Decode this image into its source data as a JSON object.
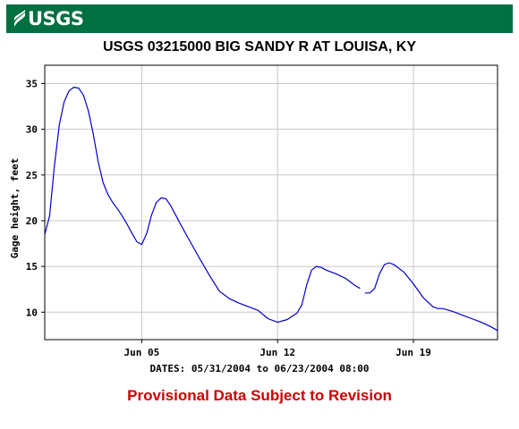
{
  "banner": {
    "logo_text": "USGS",
    "logo_icon": "usgs-wave-icon",
    "color": "#006f41"
  },
  "chart_data": {
    "type": "line",
    "title": "USGS 03215000 BIG SANDY R AT LOUISA, KY",
    "xlabel": "DATES: 05/31/2004 to 06/23/2004 08:00",
    "ylabel": "Gage height, feet",
    "x_ticks": [
      "Jun 05",
      "Jun 12",
      "Jun 19"
    ],
    "y_ticks": [
      "10",
      "15",
      "20",
      "25",
      "30",
      "35"
    ],
    "ylim": [
      7,
      37
    ],
    "xlim": [
      "05/31/2004 00:00",
      "06/23/2004 08:00"
    ],
    "grid": true,
    "line_color": "#0000cc",
    "series": [
      {
        "segments": [
          [
            [
              "05/31/2004 00:00",
              18.5
            ],
            [
              "05/31/2004 06:00",
              20.5
            ],
            [
              "05/31/2004 12:00",
              26.0
            ],
            [
              "05/31/2004 18:00",
              30.5
            ],
            [
              "06/01/2004 00:00",
              33.0
            ],
            [
              "06/01/2004 06:00",
              34.2
            ],
            [
              "06/01/2004 12:00",
              34.6
            ],
            [
              "06/01/2004 18:00",
              34.5
            ],
            [
              "06/02/2004 00:00",
              33.7
            ],
            [
              "06/02/2004 06:00",
              32.0
            ],
            [
              "06/02/2004 12:00",
              29.5
            ],
            [
              "06/02/2004 18:00",
              26.5
            ],
            [
              "06/03/2004 00:00",
              24.2
            ],
            [
              "06/03/2004 06:00",
              22.9
            ],
            [
              "06/03/2004 12:00",
              22.0
            ],
            [
              "06/03/2004 18:00",
              21.3
            ],
            [
              "06/04/2004 00:00",
              20.5
            ],
            [
              "06/04/2004 06:00",
              19.6
            ],
            [
              "06/04/2004 12:00",
              18.6
            ],
            [
              "06/04/2004 18:00",
              17.7
            ],
            [
              "06/05/2004 00:00",
              17.4
            ],
            [
              "06/05/2004 06:00",
              18.6
            ],
            [
              "06/05/2004 12:00",
              20.6
            ],
            [
              "06/05/2004 18:00",
              22.0
            ],
            [
              "06/06/2004 00:00",
              22.5
            ],
            [
              "06/06/2004 06:00",
              22.4
            ],
            [
              "06/06/2004 12:00",
              21.6
            ],
            [
              "06/06/2004 18:00",
              20.6
            ],
            [
              "06/07/2004 00:00",
              19.6
            ],
            [
              "06/07/2004 12:00",
              17.7
            ],
            [
              "06/08/2004 00:00",
              15.8
            ],
            [
              "06/08/2004 12:00",
              14.0
            ],
            [
              "06/09/2004 00:00",
              12.3
            ],
            [
              "06/09/2004 12:00",
              11.5
            ],
            [
              "06/10/2004 00:00",
              11.0
            ],
            [
              "06/10/2004 12:00",
              10.6
            ],
            [
              "06/11/2004 00:00",
              10.2
            ],
            [
              "06/11/2004 12:00",
              9.3
            ],
            [
              "06/12/2004 00:00",
              8.9
            ],
            [
              "06/12/2004 12:00",
              9.2
            ],
            [
              "06/13/2004 00:00",
              9.9
            ],
            [
              "06/13/2004 06:00",
              10.8
            ],
            [
              "06/13/2004 12:00",
              13.0
            ],
            [
              "06/13/2004 18:00",
              14.6
            ],
            [
              "06/14/2004 00:00",
              15.0
            ],
            [
              "06/14/2004 06:00",
              14.9
            ],
            [
              "06/14/2004 12:00",
              14.6
            ],
            [
              "06/15/2004 00:00",
              14.2
            ],
            [
              "06/15/2004 12:00",
              13.7
            ],
            [
              "06/16/2004 00:00",
              12.9
            ],
            [
              "06/16/2004 06:00",
              12.6
            ]
          ],
          [
            [
              "06/16/2004 12:00",
              12.1
            ],
            [
              "06/16/2004 18:00",
              12.1
            ],
            [
              "06/17/2004 00:00",
              12.6
            ],
            [
              "06/17/2004 06:00",
              14.2
            ],
            [
              "06/17/2004 12:00",
              15.2
            ],
            [
              "06/17/2004 18:00",
              15.4
            ],
            [
              "06/18/2004 00:00",
              15.2
            ],
            [
              "06/18/2004 12:00",
              14.4
            ],
            [
              "06/19/2004 00:00",
              13.1
            ],
            [
              "06/19/2004 12:00",
              11.6
            ],
            [
              "06/20/2004 00:00",
              10.6
            ],
            [
              "06/20/2004 06:00",
              10.4
            ],
            [
              "06/20/2004 12:00",
              10.4
            ],
            [
              "06/21/2004 00:00",
              10.1
            ],
            [
              "06/21/2004 12:00",
              9.7
            ],
            [
              "06/22/2004 00:00",
              9.3
            ],
            [
              "06/22/2004 12:00",
              8.9
            ],
            [
              "06/23/2004 00:00",
              8.4
            ],
            [
              "06/23/2004 08:00",
              8.0
            ]
          ]
        ]
      }
    ]
  },
  "footer": {
    "provisional": "Provisional Data Subject to Revision",
    "provisional_color": "#cc0000"
  }
}
